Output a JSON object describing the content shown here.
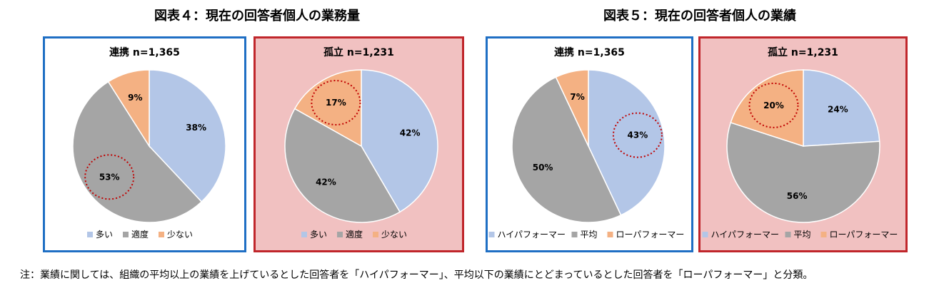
{
  "figures": [
    {
      "title": "図表４：現在の回答者個人の業務量"
    },
    {
      "title": "図表５：現在の回答者個人の業績"
    }
  ],
  "chart_data": [
    {
      "type": "pie",
      "title": "連携 n=1,365",
      "categories": [
        "多い",
        "適度",
        "少ない"
      ],
      "values": [
        38,
        53,
        9
      ],
      "labels": [
        "38%",
        "53%",
        "9%"
      ],
      "colors": [
        "#b3c6e7",
        "#a5a5a5",
        "#f4b183"
      ],
      "panel_color": "#ffffff",
      "border_color": "#1f6fc4",
      "circled": 1
    },
    {
      "type": "pie",
      "title": "孤立 n=1,231",
      "categories": [
        "多い",
        "適度",
        "少ない"
      ],
      "values": [
        42,
        42,
        17
      ],
      "labels": [
        "42%",
        "42%",
        "17%"
      ],
      "colors": [
        "#b3c6e7",
        "#a5a5a5",
        "#f4b183"
      ],
      "panel_color": "#f1c1c1",
      "border_color": "#c0262b",
      "circled": 2
    },
    {
      "type": "pie",
      "title": "連携 n=1,365",
      "categories": [
        "ハイパフォーマー",
        "平均",
        "ローパフォーマー"
      ],
      "values": [
        43,
        50,
        7
      ],
      "labels": [
        "43%",
        "50%",
        "7%"
      ],
      "colors": [
        "#b3c6e7",
        "#a5a5a5",
        "#f4b183"
      ],
      "panel_color": "#ffffff",
      "border_color": "#1f6fc4",
      "circled": 0
    },
    {
      "type": "pie",
      "title": "孤立 n=1,231",
      "categories": [
        "ハイパフォーマー",
        "平均",
        "ローパフォーマー"
      ],
      "values": [
        24,
        56,
        20
      ],
      "labels": [
        "24%",
        "56%",
        "20%"
      ],
      "colors": [
        "#b3c6e7",
        "#a5a5a5",
        "#f4b183"
      ],
      "panel_color": "#f1c1c1",
      "border_color": "#c0262b",
      "circled": 2
    }
  ],
  "highlight_color": "#c00000",
  "note": "注：業績に関しては、組織の平均以上の業績を上げているとした回答者を「ハイパフォーマー」、平均以下の業績にとどまっているとした回答者を「ローパフォーマー」と分類。"
}
